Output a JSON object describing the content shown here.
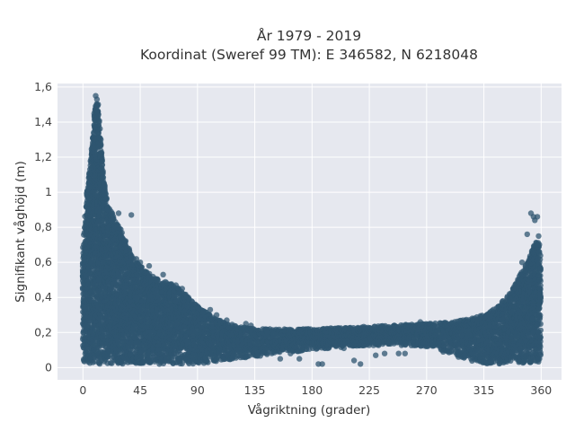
{
  "chart_data": {
    "type": "scatter",
    "title_line1": "År 1979 - 2019",
    "title_line2": "Koordinat (Sweref 99 TM): E 346582, N 6218048",
    "xlabel": "Vågriktning (grader)",
    "ylabel": "Signifikant våghöjd (m)",
    "xlim": [
      -20,
      376
    ],
    "ylim": [
      -0.07,
      1.62
    ],
    "x_ticks": [
      0,
      45,
      90,
      135,
      180,
      225,
      270,
      315,
      360
    ],
    "x_tick_labels": [
      "0",
      "45",
      "90",
      "135",
      "180",
      "225",
      "270",
      "315",
      "360"
    ],
    "y_ticks": [
      0,
      0.2,
      0.4,
      0.6,
      0.8,
      1,
      1.2,
      1.4,
      1.6
    ],
    "y_tick_labels": [
      "0",
      "0,2",
      "0,4",
      "0,6",
      "0,8",
      "1",
      "1,2",
      "1,4",
      "1,6"
    ],
    "grid": true,
    "marker_color": "#2f5570",
    "background_color": "#e6e8ef",
    "envelope": [
      [
        0,
        0.02,
        0.7
      ],
      [
        3,
        0.02,
        1.0
      ],
      [
        6,
        0.02,
        1.2
      ],
      [
        9,
        0.02,
        1.45
      ],
      [
        11,
        0.02,
        1.55
      ],
      [
        13,
        0.02,
        1.4
      ],
      [
        16,
        0.02,
        1.1
      ],
      [
        20,
        0.02,
        0.92
      ],
      [
        25,
        0.02,
        0.85
      ],
      [
        30,
        0.02,
        0.78
      ],
      [
        40,
        0.02,
        0.62
      ],
      [
        50,
        0.02,
        0.55
      ],
      [
        60,
        0.02,
        0.5
      ],
      [
        70,
        0.02,
        0.48
      ],
      [
        80,
        0.02,
        0.42
      ],
      [
        90,
        0.02,
        0.35
      ],
      [
        100,
        0.03,
        0.3
      ],
      [
        110,
        0.04,
        0.26
      ],
      [
        120,
        0.05,
        0.24
      ],
      [
        135,
        0.06,
        0.22
      ],
      [
        150,
        0.08,
        0.22
      ],
      [
        180,
        0.1,
        0.22
      ],
      [
        210,
        0.12,
        0.23
      ],
      [
        240,
        0.13,
        0.24
      ],
      [
        270,
        0.12,
        0.25
      ],
      [
        290,
        0.08,
        0.26
      ],
      [
        305,
        0.04,
        0.28
      ],
      [
        315,
        0.02,
        0.3
      ],
      [
        325,
        0.02,
        0.34
      ],
      [
        335,
        0.02,
        0.42
      ],
      [
        345,
        0.02,
        0.55
      ],
      [
        352,
        0.02,
        0.65
      ],
      [
        356,
        0.02,
        0.72
      ],
      [
        360,
        0.02,
        0.7
      ]
    ],
    "outliers": [
      [
        10,
        1.55
      ],
      [
        11,
        1.53
      ],
      [
        12,
        1.5
      ],
      [
        9,
        1.38
      ],
      [
        14,
        1.3
      ],
      [
        8,
        1.25
      ],
      [
        5,
        1.03
      ],
      [
        4,
        0.9
      ],
      [
        20,
        0.9
      ],
      [
        22,
        0.89
      ],
      [
        28,
        0.88
      ],
      [
        38,
        0.87
      ],
      [
        30,
        0.75
      ],
      [
        42,
        0.62
      ],
      [
        45,
        0.6
      ],
      [
        52,
        0.58
      ],
      [
        63,
        0.53
      ],
      [
        73,
        0.47
      ],
      [
        78,
        0.45
      ],
      [
        95,
        0.32
      ],
      [
        100,
        0.33
      ],
      [
        105,
        0.3
      ],
      [
        113,
        0.27
      ],
      [
        128,
        0.25
      ],
      [
        132,
        0.24
      ],
      [
        145,
        0.2
      ],
      [
        150,
        0.19
      ],
      [
        155,
        0.05
      ],
      [
        163,
        0.08
      ],
      [
        170,
        0.05
      ],
      [
        185,
        0.02
      ],
      [
        188,
        0.02
      ],
      [
        205,
        0.11
      ],
      [
        213,
        0.04
      ],
      [
        218,
        0.02
      ],
      [
        230,
        0.07
      ],
      [
        237,
        0.08
      ],
      [
        248,
        0.08
      ],
      [
        253,
        0.08
      ],
      [
        265,
        0.26
      ],
      [
        283,
        0.09
      ],
      [
        295,
        0.06
      ],
      [
        300,
        0.07
      ],
      [
        305,
        0.05
      ],
      [
        320,
        0.29
      ],
      [
        330,
        0.38
      ],
      [
        338,
        0.45
      ],
      [
        345,
        0.6
      ],
      [
        349,
        0.76
      ],
      [
        352,
        0.88
      ],
      [
        354,
        0.86
      ],
      [
        355,
        0.84
      ],
      [
        357,
        0.86
      ],
      [
        358,
        0.75
      ]
    ]
  }
}
